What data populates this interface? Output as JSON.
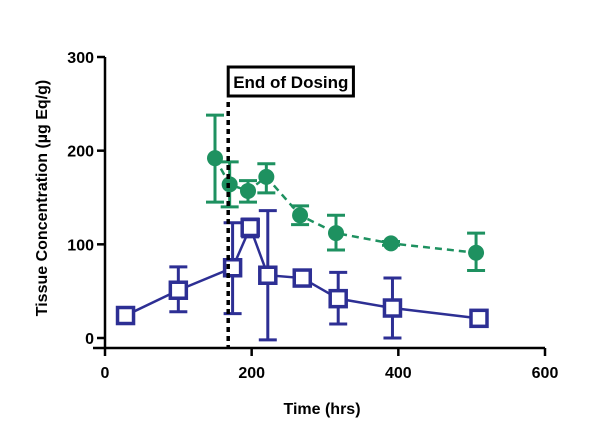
{
  "chart_data": {
    "type": "scatter",
    "xlabel": "Time  (hrs)",
    "ylabel": "Tissue Concentration (µg Eq/g)",
    "xlim": [
      0,
      600
    ],
    "ylim": [
      0,
      300
    ],
    "x_ticks": [
      "0",
      "200",
      "400",
      "600"
    ],
    "y_ticks": [
      "0",
      "100",
      "200",
      "300"
    ],
    "grid": false,
    "legend": "none",
    "annotation": {
      "text": "End of Dosing",
      "x": 168
    },
    "series": [
      {
        "marker": "circle",
        "line_style": "dashed",
        "color": "#1e9160",
        "points": [
          {
            "x": 150,
            "y": 192,
            "err_low": 145,
            "err_high": 238
          },
          {
            "x": 170,
            "y": 164,
            "err_low": 140,
            "err_high": 188
          },
          {
            "x": 195,
            "y": 157,
            "err_low": 145,
            "err_high": 168
          },
          {
            "x": 220,
            "y": 172,
            "err_low": 155,
            "err_high": 186
          },
          {
            "x": 266,
            "y": 131,
            "err_low": 121,
            "err_high": 141
          },
          {
            "x": 315,
            "y": 112,
            "err_low": 94,
            "err_high": 131
          },
          {
            "x": 390,
            "y": 101,
            "err_low": 99,
            "err_high": 103
          },
          {
            "x": 506,
            "y": 91,
            "err_low": 72,
            "err_high": 112
          }
        ]
      },
      {
        "marker": "square",
        "line_style": "solid",
        "color": "#2d2f94",
        "points": [
          {
            "x": 28,
            "y": 24,
            "err_low": 22,
            "err_high": 26
          },
          {
            "x": 100,
            "y": 51,
            "err_low": 28,
            "err_high": 76
          },
          {
            "x": 174,
            "y": 75,
            "err_low": 26,
            "err_high": 123
          },
          {
            "x": 198,
            "y": 118,
            "err_low": 108,
            "err_high": 127
          },
          {
            "x": 222,
            "y": 67,
            "err_low": -2,
            "err_high": 136
          },
          {
            "x": 269,
            "y": 64,
            "err_low": 60,
            "err_high": 67
          },
          {
            "x": 318,
            "y": 42,
            "err_low": 15,
            "err_high": 70
          },
          {
            "x": 392,
            "y": 32,
            "err_low": 0,
            "err_high": 64
          },
          {
            "x": 510,
            "y": 21,
            "err_low": 19,
            "err_high": 23
          }
        ]
      }
    ]
  }
}
